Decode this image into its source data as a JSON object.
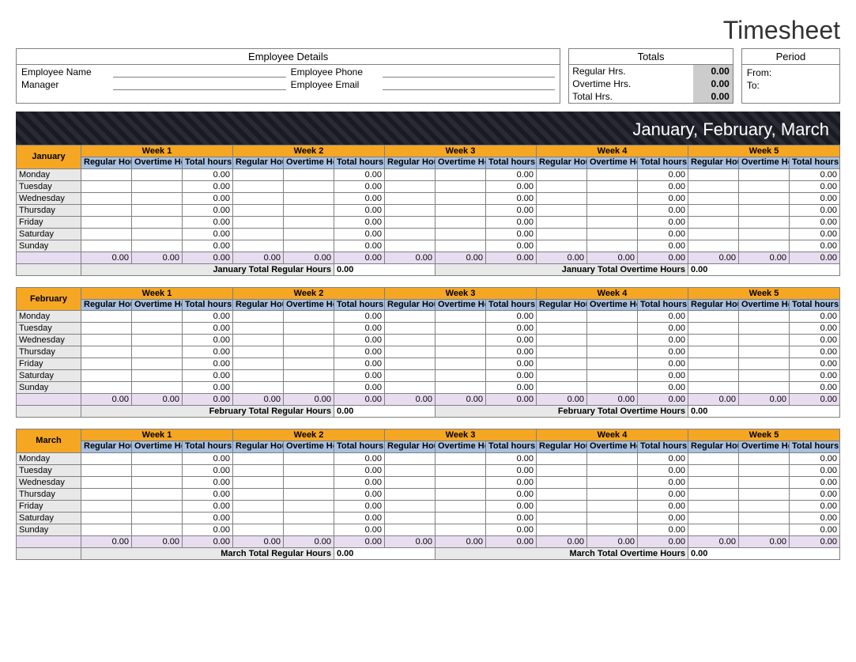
{
  "title": "Timesheet",
  "employeeDetails": {
    "heading": "Employee Details",
    "employeeNameLabel": "Employee Name",
    "employeePhoneLabel": "Employee Phone",
    "managerLabel": "Manager",
    "employeeEmailLabel": "Employee Email",
    "employeeName": "",
    "employeePhone": "",
    "manager": "",
    "employeeEmail": ""
  },
  "totals": {
    "heading": "Totals",
    "regularLabel": "Regular Hrs.",
    "overtimeLabel": "Overtime Hrs.",
    "totalLabel": "Total Hrs.",
    "regular": "0.00",
    "overtime": "0.00",
    "total": "0.00"
  },
  "period": {
    "heading": "Period",
    "fromLabel": "From:",
    "toLabel": "To:",
    "from": "",
    "to": ""
  },
  "quarterBanner": "January, February, March",
  "weekLabels": [
    "Week 1",
    "Week 2",
    "Week 3",
    "Week 4",
    "Week 5"
  ],
  "subHeaders": {
    "regular": "Regular Hours",
    "overtime": "Overtime Hours",
    "total": "Total hours"
  },
  "days": [
    "Monday",
    "Tuesday",
    "Wednesday",
    "Thursday",
    "Friday",
    "Saturday",
    "Sunday"
  ],
  "months": [
    {
      "name": "January",
      "totalRegularLabel": "January Total Regular Hours",
      "totalOvertimeLabel": "January Total Overtime Hours",
      "totalRegular": "0.00",
      "totalOvertime": "0.00",
      "weeks": [
        {
          "days": [
            {
              "r": "",
              "o": "",
              "t": "0.00"
            },
            {
              "r": "",
              "o": "",
              "t": "0.00"
            },
            {
              "r": "",
              "o": "",
              "t": "0.00"
            },
            {
              "r": "",
              "o": "",
              "t": "0.00"
            },
            {
              "r": "",
              "o": "",
              "t": "0.00"
            },
            {
              "r": "",
              "o": "",
              "t": "0.00"
            },
            {
              "r": "",
              "o": "",
              "t": "0.00"
            }
          ],
          "sum": {
            "r": "0.00",
            "o": "0.00",
            "t": "0.00"
          }
        },
        {
          "days": [
            {
              "r": "",
              "o": "",
              "t": "0.00"
            },
            {
              "r": "",
              "o": "",
              "t": "0.00"
            },
            {
              "r": "",
              "o": "",
              "t": "0.00"
            },
            {
              "r": "",
              "o": "",
              "t": "0.00"
            },
            {
              "r": "",
              "o": "",
              "t": "0.00"
            },
            {
              "r": "",
              "o": "",
              "t": "0.00"
            },
            {
              "r": "",
              "o": "",
              "t": "0.00"
            }
          ],
          "sum": {
            "r": "0.00",
            "o": "0.00",
            "t": "0.00"
          }
        },
        {
          "days": [
            {
              "r": "",
              "o": "",
              "t": "0.00"
            },
            {
              "r": "",
              "o": "",
              "t": "0.00"
            },
            {
              "r": "",
              "o": "",
              "t": "0.00"
            },
            {
              "r": "",
              "o": "",
              "t": "0.00"
            },
            {
              "r": "",
              "o": "",
              "t": "0.00"
            },
            {
              "r": "",
              "o": "",
              "t": "0.00"
            },
            {
              "r": "",
              "o": "",
              "t": "0.00"
            }
          ],
          "sum": {
            "r": "0.00",
            "o": "0.00",
            "t": "0.00"
          }
        },
        {
          "days": [
            {
              "r": "",
              "o": "",
              "t": "0.00"
            },
            {
              "r": "",
              "o": "",
              "t": "0.00"
            },
            {
              "r": "",
              "o": "",
              "t": "0.00"
            },
            {
              "r": "",
              "o": "",
              "t": "0.00"
            },
            {
              "r": "",
              "o": "",
              "t": "0.00"
            },
            {
              "r": "",
              "o": "",
              "t": "0.00"
            },
            {
              "r": "",
              "o": "",
              "t": "0.00"
            }
          ],
          "sum": {
            "r": "0.00",
            "o": "0.00",
            "t": "0.00"
          }
        },
        {
          "days": [
            {
              "r": "",
              "o": "",
              "t": "0.00"
            },
            {
              "r": "",
              "o": "",
              "t": "0.00"
            },
            {
              "r": "",
              "o": "",
              "t": "0.00"
            },
            {
              "r": "",
              "o": "",
              "t": "0.00"
            },
            {
              "r": "",
              "o": "",
              "t": "0.00"
            },
            {
              "r": "",
              "o": "",
              "t": "0.00"
            },
            {
              "r": "",
              "o": "",
              "t": "0.00"
            }
          ],
          "sum": {
            "r": "0.00",
            "o": "0.00",
            "t": "0.00"
          }
        }
      ]
    },
    {
      "name": "February",
      "totalRegularLabel": "February Total Regular Hours",
      "totalOvertimeLabel": "February Total Overtime Hours",
      "totalRegular": "0.00",
      "totalOvertime": "0.00",
      "weeks": [
        {
          "days": [
            {
              "r": "",
              "o": "",
              "t": "0.00"
            },
            {
              "r": "",
              "o": "",
              "t": "0.00"
            },
            {
              "r": "",
              "o": "",
              "t": "0.00"
            },
            {
              "r": "",
              "o": "",
              "t": "0.00"
            },
            {
              "r": "",
              "o": "",
              "t": "0.00"
            },
            {
              "r": "",
              "o": "",
              "t": "0.00"
            },
            {
              "r": "",
              "o": "",
              "t": "0.00"
            }
          ],
          "sum": {
            "r": "0.00",
            "o": "0.00",
            "t": "0.00"
          }
        },
        {
          "days": [
            {
              "r": "",
              "o": "",
              "t": "0.00"
            },
            {
              "r": "",
              "o": "",
              "t": "0.00"
            },
            {
              "r": "",
              "o": "",
              "t": "0.00"
            },
            {
              "r": "",
              "o": "",
              "t": "0.00"
            },
            {
              "r": "",
              "o": "",
              "t": "0.00"
            },
            {
              "r": "",
              "o": "",
              "t": "0.00"
            },
            {
              "r": "",
              "o": "",
              "t": "0.00"
            }
          ],
          "sum": {
            "r": "0.00",
            "o": "0.00",
            "t": "0.00"
          }
        },
        {
          "days": [
            {
              "r": "",
              "o": "",
              "t": "0.00"
            },
            {
              "r": "",
              "o": "",
              "t": "0.00"
            },
            {
              "r": "",
              "o": "",
              "t": "0.00"
            },
            {
              "r": "",
              "o": "",
              "t": "0.00"
            },
            {
              "r": "",
              "o": "",
              "t": "0.00"
            },
            {
              "r": "",
              "o": "",
              "t": "0.00"
            },
            {
              "r": "",
              "o": "",
              "t": "0.00"
            }
          ],
          "sum": {
            "r": "0.00",
            "o": "0.00",
            "t": "0.00"
          }
        },
        {
          "days": [
            {
              "r": "",
              "o": "",
              "t": "0.00"
            },
            {
              "r": "",
              "o": "",
              "t": "0.00"
            },
            {
              "r": "",
              "o": "",
              "t": "0.00"
            },
            {
              "r": "",
              "o": "",
              "t": "0.00"
            },
            {
              "r": "",
              "o": "",
              "t": "0.00"
            },
            {
              "r": "",
              "o": "",
              "t": "0.00"
            },
            {
              "r": "",
              "o": "",
              "t": "0.00"
            }
          ],
          "sum": {
            "r": "0.00",
            "o": "0.00",
            "t": "0.00"
          }
        },
        {
          "days": [
            {
              "r": "",
              "o": "",
              "t": "0.00"
            },
            {
              "r": "",
              "o": "",
              "t": "0.00"
            },
            {
              "r": "",
              "o": "",
              "t": "0.00"
            },
            {
              "r": "",
              "o": "",
              "t": "0.00"
            },
            {
              "r": "",
              "o": "",
              "t": "0.00"
            },
            {
              "r": "",
              "o": "",
              "t": "0.00"
            },
            {
              "r": "",
              "o": "",
              "t": "0.00"
            }
          ],
          "sum": {
            "r": "0.00",
            "o": "0.00",
            "t": "0.00"
          }
        }
      ]
    },
    {
      "name": "March",
      "totalRegularLabel": "March Total Regular Hours",
      "totalOvertimeLabel": "March Total Overtime Hours",
      "totalRegular": "0.00",
      "totalOvertime": "0.00",
      "weeks": [
        {
          "days": [
            {
              "r": "",
              "o": "",
              "t": "0.00"
            },
            {
              "r": "",
              "o": "",
              "t": "0.00"
            },
            {
              "r": "",
              "o": "",
              "t": "0.00"
            },
            {
              "r": "",
              "o": "",
              "t": "0.00"
            },
            {
              "r": "",
              "o": "",
              "t": "0.00"
            },
            {
              "r": "",
              "o": "",
              "t": "0.00"
            },
            {
              "r": "",
              "o": "",
              "t": "0.00"
            }
          ],
          "sum": {
            "r": "0.00",
            "o": "0.00",
            "t": "0.00"
          }
        },
        {
          "days": [
            {
              "r": "",
              "o": "",
              "t": "0.00"
            },
            {
              "r": "",
              "o": "",
              "t": "0.00"
            },
            {
              "r": "",
              "o": "",
              "t": "0.00"
            },
            {
              "r": "",
              "o": "",
              "t": "0.00"
            },
            {
              "r": "",
              "o": "",
              "t": "0.00"
            },
            {
              "r": "",
              "o": "",
              "t": "0.00"
            },
            {
              "r": "",
              "o": "",
              "t": "0.00"
            }
          ],
          "sum": {
            "r": "0.00",
            "o": "0.00",
            "t": "0.00"
          }
        },
        {
          "days": [
            {
              "r": "",
              "o": "",
              "t": "0.00"
            },
            {
              "r": "",
              "o": "",
              "t": "0.00"
            },
            {
              "r": "",
              "o": "",
              "t": "0.00"
            },
            {
              "r": "",
              "o": "",
              "t": "0.00"
            },
            {
              "r": "",
              "o": "",
              "t": "0.00"
            },
            {
              "r": "",
              "o": "",
              "t": "0.00"
            },
            {
              "r": "",
              "o": "",
              "t": "0.00"
            }
          ],
          "sum": {
            "r": "0.00",
            "o": "0.00",
            "t": "0.00"
          }
        },
        {
          "days": [
            {
              "r": "",
              "o": "",
              "t": "0.00"
            },
            {
              "r": "",
              "o": "",
              "t": "0.00"
            },
            {
              "r": "",
              "o": "",
              "t": "0.00"
            },
            {
              "r": "",
              "o": "",
              "t": "0.00"
            },
            {
              "r": "",
              "o": "",
              "t": "0.00"
            },
            {
              "r": "",
              "o": "",
              "t": "0.00"
            },
            {
              "r": "",
              "o": "",
              "t": "0.00"
            }
          ],
          "sum": {
            "r": "0.00",
            "o": "0.00",
            "t": "0.00"
          }
        },
        {
          "days": [
            {
              "r": "",
              "o": "",
              "t": "0.00"
            },
            {
              "r": "",
              "o": "",
              "t": "0.00"
            },
            {
              "r": "",
              "o": "",
              "t": "0.00"
            },
            {
              "r": "",
              "o": "",
              "t": "0.00"
            },
            {
              "r": "",
              "o": "",
              "t": "0.00"
            },
            {
              "r": "",
              "o": "",
              "t": "0.00"
            },
            {
              "r": "",
              "o": "",
              "t": "0.00"
            }
          ],
          "sum": {
            "r": "0.00",
            "o": "0.00",
            "t": "0.00"
          }
        }
      ]
    }
  ],
  "colors": {
    "orange": "#f5a623",
    "blueHeader": "#a8c0e0",
    "lavenderSum": "#e8ddf0",
    "grayCell": "#e8e8e8",
    "border": "#808080",
    "bannerBg": "#1a1a22"
  }
}
